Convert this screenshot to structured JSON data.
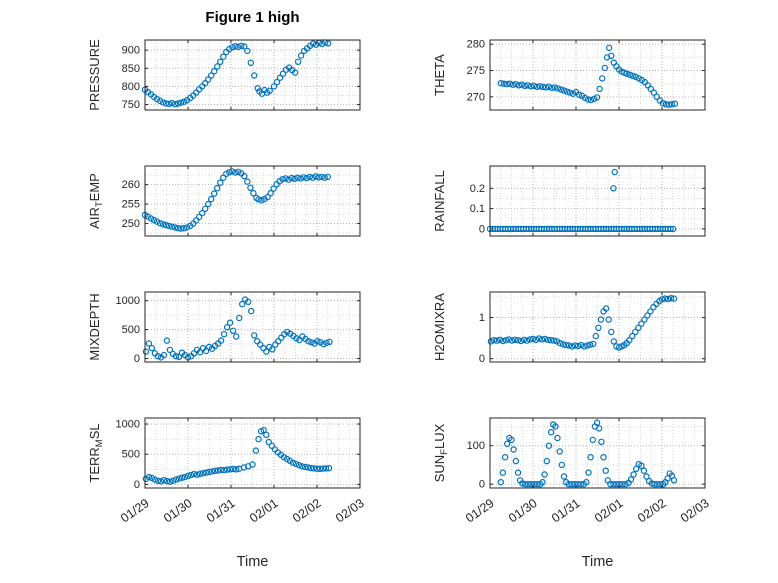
{
  "figure": {
    "title": "Figure 1 high",
    "xlabel": "Time",
    "background": "#ffffff"
  },
  "style": {
    "marker_color": "#0072BD",
    "axis_color": "#262626",
    "grid_major_color": "#b5b5b5",
    "grid_minor_color": "#d9d9d9",
    "label_color": "#262626"
  },
  "x_axis": {
    "range": [
      0,
      5
    ],
    "tick_values": [
      0,
      1,
      2,
      3,
      4,
      5
    ],
    "tick_labels": [
      "01/29",
      "01/30",
      "01/31",
      "02/01",
      "02/02",
      "02/03"
    ],
    "minor_step": 0.25
  },
  "chart_data": [
    {
      "type": "scatter",
      "name": "pressure",
      "ylabel_text": "PRESSURE",
      "ylabel_parts": [
        {
          "t": "PRESSURE"
        }
      ],
      "yticks": [
        750,
        800,
        850,
        900
      ],
      "ylim": [
        735,
        928
      ],
      "x": [
        0,
        0.07,
        0.14,
        0.21,
        0.28,
        0.35,
        0.42,
        0.49,
        0.56,
        0.63,
        0.7,
        0.77,
        0.84,
        0.91,
        0.98,
        1.05,
        1.12,
        1.19,
        1.26,
        1.33,
        1.4,
        1.47,
        1.54,
        1.61,
        1.68,
        1.75,
        1.82,
        1.89,
        1.96,
        2.03,
        2.1,
        2.17,
        2.24,
        2.31,
        2.38,
        2.46,
        2.54,
        2.62,
        2.66,
        2.72,
        2.78,
        2.84,
        2.9,
        3.0,
        3.07,
        3.14,
        3.21,
        3.28,
        3.35,
        3.42,
        3.49,
        3.56,
        3.63,
        3.7,
        3.77,
        3.84,
        3.91,
        3.98,
        4.05,
        4.12,
        4.19,
        4.26
      ],
      "y": [
        791,
        784,
        778,
        771,
        765,
        760,
        756,
        753,
        752,
        754,
        751,
        753,
        755,
        758,
        762,
        768,
        775,
        783,
        792,
        800,
        809,
        819,
        830,
        842,
        855,
        868,
        882,
        895,
        903,
        908,
        911,
        909,
        912,
        910,
        898,
        865,
        830,
        795,
        786,
        780,
        790,
        783,
        788,
        800,
        812,
        824,
        835,
        846,
        852,
        845,
        838,
        868,
        885,
        898,
        905,
        912,
        918,
        915,
        920,
        917,
        921,
        919
      ]
    },
    {
      "type": "scatter",
      "name": "theta",
      "ylabel_text": "THETA",
      "ylabel_parts": [
        {
          "t": "THETA"
        }
      ],
      "yticks": [
        270,
        275,
        280
      ],
      "ylim": [
        267.5,
        280.8
      ],
      "x": [
        0.25,
        0.32,
        0.39,
        0.46,
        0.53,
        0.6,
        0.67,
        0.74,
        0.81,
        0.88,
        0.95,
        1.02,
        1.09,
        1.16,
        1.23,
        1.3,
        1.37,
        1.44,
        1.51,
        1.58,
        1.65,
        1.72,
        1.79,
        1.86,
        1.93,
        2.0,
        2.07,
        2.14,
        2.21,
        2.28,
        2.35,
        2.42,
        2.49,
        2.55,
        2.61,
        2.67,
        2.72,
        2.77,
        2.82,
        2.88,
        2.94,
        3.0,
        3.06,
        3.12,
        3.18,
        3.25,
        3.32,
        3.39,
        3.46,
        3.53,
        3.6,
        3.67,
        3.74,
        3.81,
        3.88,
        3.95,
        4.02,
        4.09,
        4.16,
        4.23,
        4.3
      ],
      "y": [
        272.6,
        272.5,
        272.4,
        272.5,
        272.3,
        272.4,
        272.2,
        272.3,
        272.1,
        272.2,
        272.0,
        272.1,
        271.9,
        272.0,
        271.9,
        271.8,
        271.9,
        271.7,
        271.8,
        271.6,
        271.4,
        271.2,
        271.0,
        270.8,
        270.6,
        270.9,
        270.4,
        270.2,
        269.8,
        269.5,
        269.4,
        269.6,
        269.9,
        271.5,
        273.5,
        275.5,
        277.5,
        279.3,
        277.8,
        276.5,
        275.8,
        275.2,
        274.8,
        274.6,
        274.4,
        274.2,
        274.0,
        273.8,
        273.5,
        273.2,
        272.8,
        272.2,
        271.5,
        270.8,
        270.0,
        269.3,
        268.8,
        268.6,
        268.5,
        268.6,
        268.7
      ]
    },
    {
      "type": "scatter",
      "name": "airtemp",
      "ylabel_text": "AIR_TEMP",
      "ylabel_parts": [
        {
          "t": "AIR"
        },
        {
          "t": "T",
          "sub": true
        },
        {
          "t": "EMP"
        }
      ],
      "yticks": [
        250,
        255,
        260
      ],
      "ylim": [
        246.8,
        264.8
      ],
      "x": [
        0,
        0.07,
        0.14,
        0.21,
        0.28,
        0.35,
        0.42,
        0.49,
        0.56,
        0.63,
        0.7,
        0.77,
        0.84,
        0.91,
        0.98,
        1.05,
        1.12,
        1.19,
        1.26,
        1.33,
        1.4,
        1.47,
        1.54,
        1.61,
        1.68,
        1.75,
        1.82,
        1.89,
        1.96,
        2.03,
        2.1,
        2.17,
        2.24,
        2.31,
        2.38,
        2.45,
        2.52,
        2.59,
        2.64,
        2.71,
        2.78,
        2.85,
        2.92,
        2.99,
        3.06,
        3.13,
        3.2,
        3.27,
        3.34,
        3.41,
        3.48,
        3.55,
        3.62,
        3.69,
        3.76,
        3.83,
        3.9,
        3.97,
        4.04,
        4.11,
        4.18,
        4.25
      ],
      "y": [
        252.2,
        251.8,
        251.3,
        250.9,
        250.5,
        250.1,
        249.8,
        249.6,
        249.4,
        249.2,
        249.0,
        248.8,
        248.7,
        248.8,
        249.0,
        249.4,
        250.0,
        250.8,
        251.7,
        252.7,
        253.8,
        255.0,
        256.3,
        257.7,
        259.1,
        260.5,
        261.8,
        262.8,
        263.2,
        263.4,
        263.1,
        263.3,
        262.9,
        262.2,
        260.8,
        259.2,
        257.8,
        256.6,
        256.2,
        256.0,
        256.3,
        256.8,
        257.8,
        259.0,
        260.1,
        260.9,
        261.4,
        261.6,
        261.3,
        261.7,
        261.5,
        261.8,
        261.6,
        261.9,
        261.7,
        262.0,
        261.8,
        262.1,
        261.9,
        262.0,
        261.8,
        262.0
      ]
    },
    {
      "type": "scatter",
      "name": "rainfall",
      "ylabel_text": "RAINFALL",
      "ylabel_parts": [
        {
          "t": "RAINFALL"
        }
      ],
      "yticks": [
        0,
        0.1,
        0.2
      ],
      "ylim": [
        -0.035,
        0.31
      ],
      "x": [
        0,
        0.06,
        0.12,
        0.18,
        0.24,
        0.3,
        0.36,
        0.42,
        0.48,
        0.54,
        0.6,
        0.66,
        0.72,
        0.78,
        0.84,
        0.9,
        0.96,
        1.02,
        1.08,
        1.14,
        1.2,
        1.26,
        1.32,
        1.38,
        1.44,
        1.5,
        1.56,
        1.62,
        1.68,
        1.74,
        1.8,
        1.86,
        1.92,
        1.98,
        2.04,
        2.1,
        2.16,
        2.22,
        2.28,
        2.34,
        2.4,
        2.46,
        2.52,
        2.58,
        2.64,
        2.7,
        2.76,
        2.82,
        2.88,
        2.94,
        3,
        3.06,
        3.12,
        3.18,
        3.24,
        3.3,
        3.36,
        3.42,
        3.48,
        3.54,
        3.6,
        3.66,
        3.72,
        3.78,
        3.84,
        3.9,
        3.96,
        4.02,
        4.08,
        4.14,
        4.2,
        4.26,
        2.87,
        2.9
      ],
      "y": [
        0,
        0,
        0,
        0,
        0,
        0,
        0,
        0,
        0,
        0,
        0,
        0,
        0,
        0,
        0,
        0,
        0,
        0,
        0,
        0,
        0,
        0,
        0,
        0,
        0,
        0,
        0,
        0,
        0,
        0,
        0,
        0,
        0,
        0,
        0,
        0,
        0,
        0,
        0,
        0,
        0,
        0,
        0,
        0,
        0,
        0,
        0,
        0,
        0,
        0,
        0,
        0,
        0,
        0,
        0,
        0,
        0,
        0,
        0,
        0,
        0,
        0,
        0,
        0,
        0,
        0,
        0,
        0,
        0,
        0,
        0,
        0,
        0.2,
        0.28
      ]
    },
    {
      "type": "scatter",
      "name": "mixdepth",
      "ylabel_text": "MIXDEPTH",
      "ylabel_parts": [
        {
          "t": "MIXDEPTH"
        }
      ],
      "yticks": [
        0,
        500,
        1000
      ],
      "ylim": [
        -60,
        1150
      ],
      "x": [
        0.02,
        0.09,
        0.16,
        0.23,
        0.3,
        0.37,
        0.44,
        0.51,
        0.58,
        0.65,
        0.72,
        0.79,
        0.86,
        0.93,
        1.0,
        1.07,
        1.14,
        1.21,
        1.28,
        1.35,
        1.42,
        1.49,
        1.56,
        1.63,
        1.7,
        1.77,
        1.84,
        1.91,
        1.98,
        2.05,
        2.12,
        2.19,
        2.26,
        2.33,
        2.4,
        2.47,
        2.54,
        2.61,
        2.68,
        2.75,
        2.82,
        2.89,
        2.96,
        3.03,
        3.1,
        3.17,
        3.24,
        3.31,
        3.38,
        3.45,
        3.52,
        3.59,
        3.66,
        3.73,
        3.8,
        3.87,
        3.94,
        4.01,
        4.08,
        4.15,
        4.22,
        4.29
      ],
      "y": [
        120,
        260,
        180,
        90,
        40,
        20,
        60,
        310,
        150,
        80,
        40,
        30,
        100,
        60,
        20,
        40,
        90,
        150,
        110,
        180,
        130,
        200,
        170,
        220,
        260,
        310,
        420,
        540,
        620,
        480,
        380,
        700,
        940,
        1020,
        980,
        820,
        400,
        300,
        240,
        180,
        120,
        200,
        160,
        240,
        300,
        360,
        420,
        460,
        430,
        390,
        350,
        320,
        380,
        340,
        300,
        280,
        260,
        300,
        280,
        250,
        270,
        290
      ]
    },
    {
      "type": "scatter",
      "name": "h2omixra",
      "ylabel_text": "H2OMIXRA",
      "ylabel_parts": [
        {
          "t": "H2OMIXRA"
        }
      ],
      "yticks": [
        0,
        1
      ],
      "ylim": [
        -0.08,
        1.62
      ],
      "x": [
        0.02,
        0.09,
        0.16,
        0.23,
        0.3,
        0.37,
        0.44,
        0.51,
        0.58,
        0.65,
        0.72,
        0.79,
        0.86,
        0.93,
        1.0,
        1.07,
        1.14,
        1.21,
        1.28,
        1.35,
        1.42,
        1.49,
        1.56,
        1.63,
        1.7,
        1.77,
        1.84,
        1.91,
        1.98,
        2.05,
        2.12,
        2.19,
        2.26,
        2.33,
        2.4,
        2.46,
        2.52,
        2.58,
        2.64,
        2.7,
        2.76,
        2.82,
        2.88,
        2.94,
        3.0,
        3.06,
        3.12,
        3.18,
        3.24,
        3.31,
        3.38,
        3.45,
        3.52,
        3.59,
        3.66,
        3.73,
        3.8,
        3.87,
        3.94,
        4.0,
        4.07,
        4.14,
        4.21,
        4.28
      ],
      "y": [
        0.42,
        0.45,
        0.44,
        0.46,
        0.43,
        0.45,
        0.47,
        0.44,
        0.46,
        0.45,
        0.43,
        0.46,
        0.44,
        0.47,
        0.48,
        0.46,
        0.49,
        0.47,
        0.48,
        0.46,
        0.45,
        0.44,
        0.42,
        0.38,
        0.35,
        0.33,
        0.32,
        0.3,
        0.32,
        0.31,
        0.33,
        0.3,
        0.32,
        0.34,
        0.36,
        0.55,
        0.75,
        0.95,
        1.15,
        1.22,
        0.95,
        0.65,
        0.42,
        0.3,
        0.27,
        0.3,
        0.33,
        0.38,
        0.45,
        0.55,
        0.65,
        0.75,
        0.85,
        0.95,
        1.05,
        1.15,
        1.25,
        1.33,
        1.4,
        1.44,
        1.46,
        1.45,
        1.47,
        1.46
      ]
    },
    {
      "type": "scatter",
      "name": "terr-msl",
      "ylabel_text": "TERR_MSL",
      "ylabel_parts": [
        {
          "t": "TERR"
        },
        {
          "t": "M",
          "sub": true
        },
        {
          "t": "SL"
        }
      ],
      "yticks": [
        0,
        500,
        1000
      ],
      "ylim": [
        -60,
        1100
      ],
      "x": [
        0.02,
        0.09,
        0.16,
        0.23,
        0.3,
        0.37,
        0.44,
        0.51,
        0.58,
        0.65,
        0.72,
        0.79,
        0.86,
        0.93,
        1.0,
        1.07,
        1.14,
        1.21,
        1.28,
        1.35,
        1.42,
        1.49,
        1.56,
        1.63,
        1.7,
        1.77,
        1.84,
        1.91,
        1.98,
        2.05,
        2.12,
        2.19,
        2.3,
        2.4,
        2.5,
        2.58,
        2.64,
        2.7,
        2.76,
        2.82,
        2.88,
        2.95,
        3.02,
        3.09,
        3.16,
        3.23,
        3.3,
        3.37,
        3.44,
        3.51,
        3.58,
        3.65,
        3.72,
        3.79,
        3.86,
        3.93,
        4.0,
        4.07,
        4.14,
        4.21,
        4.28
      ],
      "y": [
        90,
        120,
        105,
        80,
        60,
        50,
        70,
        55,
        45,
        60,
        80,
        95,
        110,
        120,
        140,
        155,
        170,
        160,
        175,
        185,
        195,
        205,
        215,
        225,
        230,
        240,
        235,
        245,
        250,
        255,
        250,
        260,
        280,
        300,
        330,
        560,
        750,
        880,
        900,
        820,
        700,
        640,
        580,
        530,
        490,
        450,
        420,
        390,
        360,
        340,
        320,
        300,
        290,
        280,
        270,
        265,
        260,
        258,
        262,
        265,
        268
      ]
    },
    {
      "type": "scatter",
      "name": "sun-flux",
      "ylabel_text": "SUN_FLUX",
      "ylabel_parts": [
        {
          "t": "SUN"
        },
        {
          "t": "F",
          "sub": true
        },
        {
          "t": "LUX"
        }
      ],
      "yticks": [
        0,
        100
      ],
      "ylim": [
        -10,
        172
      ],
      "x": [
        0.25,
        0.3,
        0.35,
        0.4,
        0.45,
        0.5,
        0.55,
        0.6,
        0.65,
        0.7,
        0.75,
        0.82,
        0.89,
        0.96,
        1.03,
        1.1,
        1.17,
        1.22,
        1.27,
        1.32,
        1.37,
        1.42,
        1.47,
        1.52,
        1.57,
        1.62,
        1.67,
        1.72,
        1.77,
        1.83,
        1.9,
        1.97,
        2.04,
        2.11,
        2.18,
        2.24,
        2.29,
        2.34,
        2.39,
        2.44,
        2.49,
        2.54,
        2.59,
        2.64,
        2.69,
        2.74,
        2.8,
        2.87,
        2.94,
        3.01,
        3.08,
        3.15,
        3.22,
        3.28,
        3.34,
        3.4,
        3.46,
        3.52,
        3.58,
        3.64,
        3.7,
        3.76,
        3.82,
        3.89,
        3.96,
        4.03,
        4.08,
        4.13,
        4.18,
        4.23,
        4.28
      ],
      "y": [
        5,
        30,
        70,
        105,
        120,
        115,
        90,
        60,
        30,
        10,
        2,
        0,
        0,
        0,
        0,
        0,
        0,
        5,
        25,
        60,
        100,
        135,
        155,
        150,
        120,
        85,
        50,
        20,
        5,
        0,
        0,
        0,
        0,
        0,
        0,
        5,
        30,
        70,
        115,
        150,
        160,
        145,
        110,
        70,
        35,
        10,
        0,
        0,
        0,
        0,
        0,
        0,
        3,
        12,
        25,
        40,
        52,
        48,
        35,
        20,
        8,
        2,
        0,
        0,
        0,
        0,
        5,
        15,
        28,
        22,
        10
      ]
    }
  ]
}
